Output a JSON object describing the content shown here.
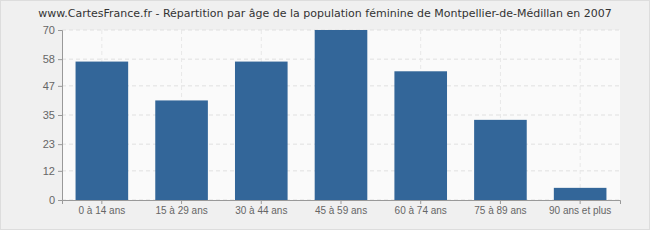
{
  "chart_data": {
    "type": "bar",
    "title": "www.CartesFrance.fr - Répartition par âge de la population féminine de Montpellier-de-Médillan en 2007",
    "categories": [
      "0 à 14 ans",
      "15 à 29 ans",
      "30 à 44 ans",
      "45 à 59 ans",
      "60 à 74 ans",
      "75 à 89 ans",
      "90 ans et plus"
    ],
    "values": [
      57,
      41,
      57,
      70,
      53,
      33,
      5
    ],
    "color": "#336699",
    "ylim": [
      0,
      70
    ],
    "yticks": [
      0,
      12,
      23,
      35,
      47,
      58,
      70
    ],
    "grid": true
  }
}
